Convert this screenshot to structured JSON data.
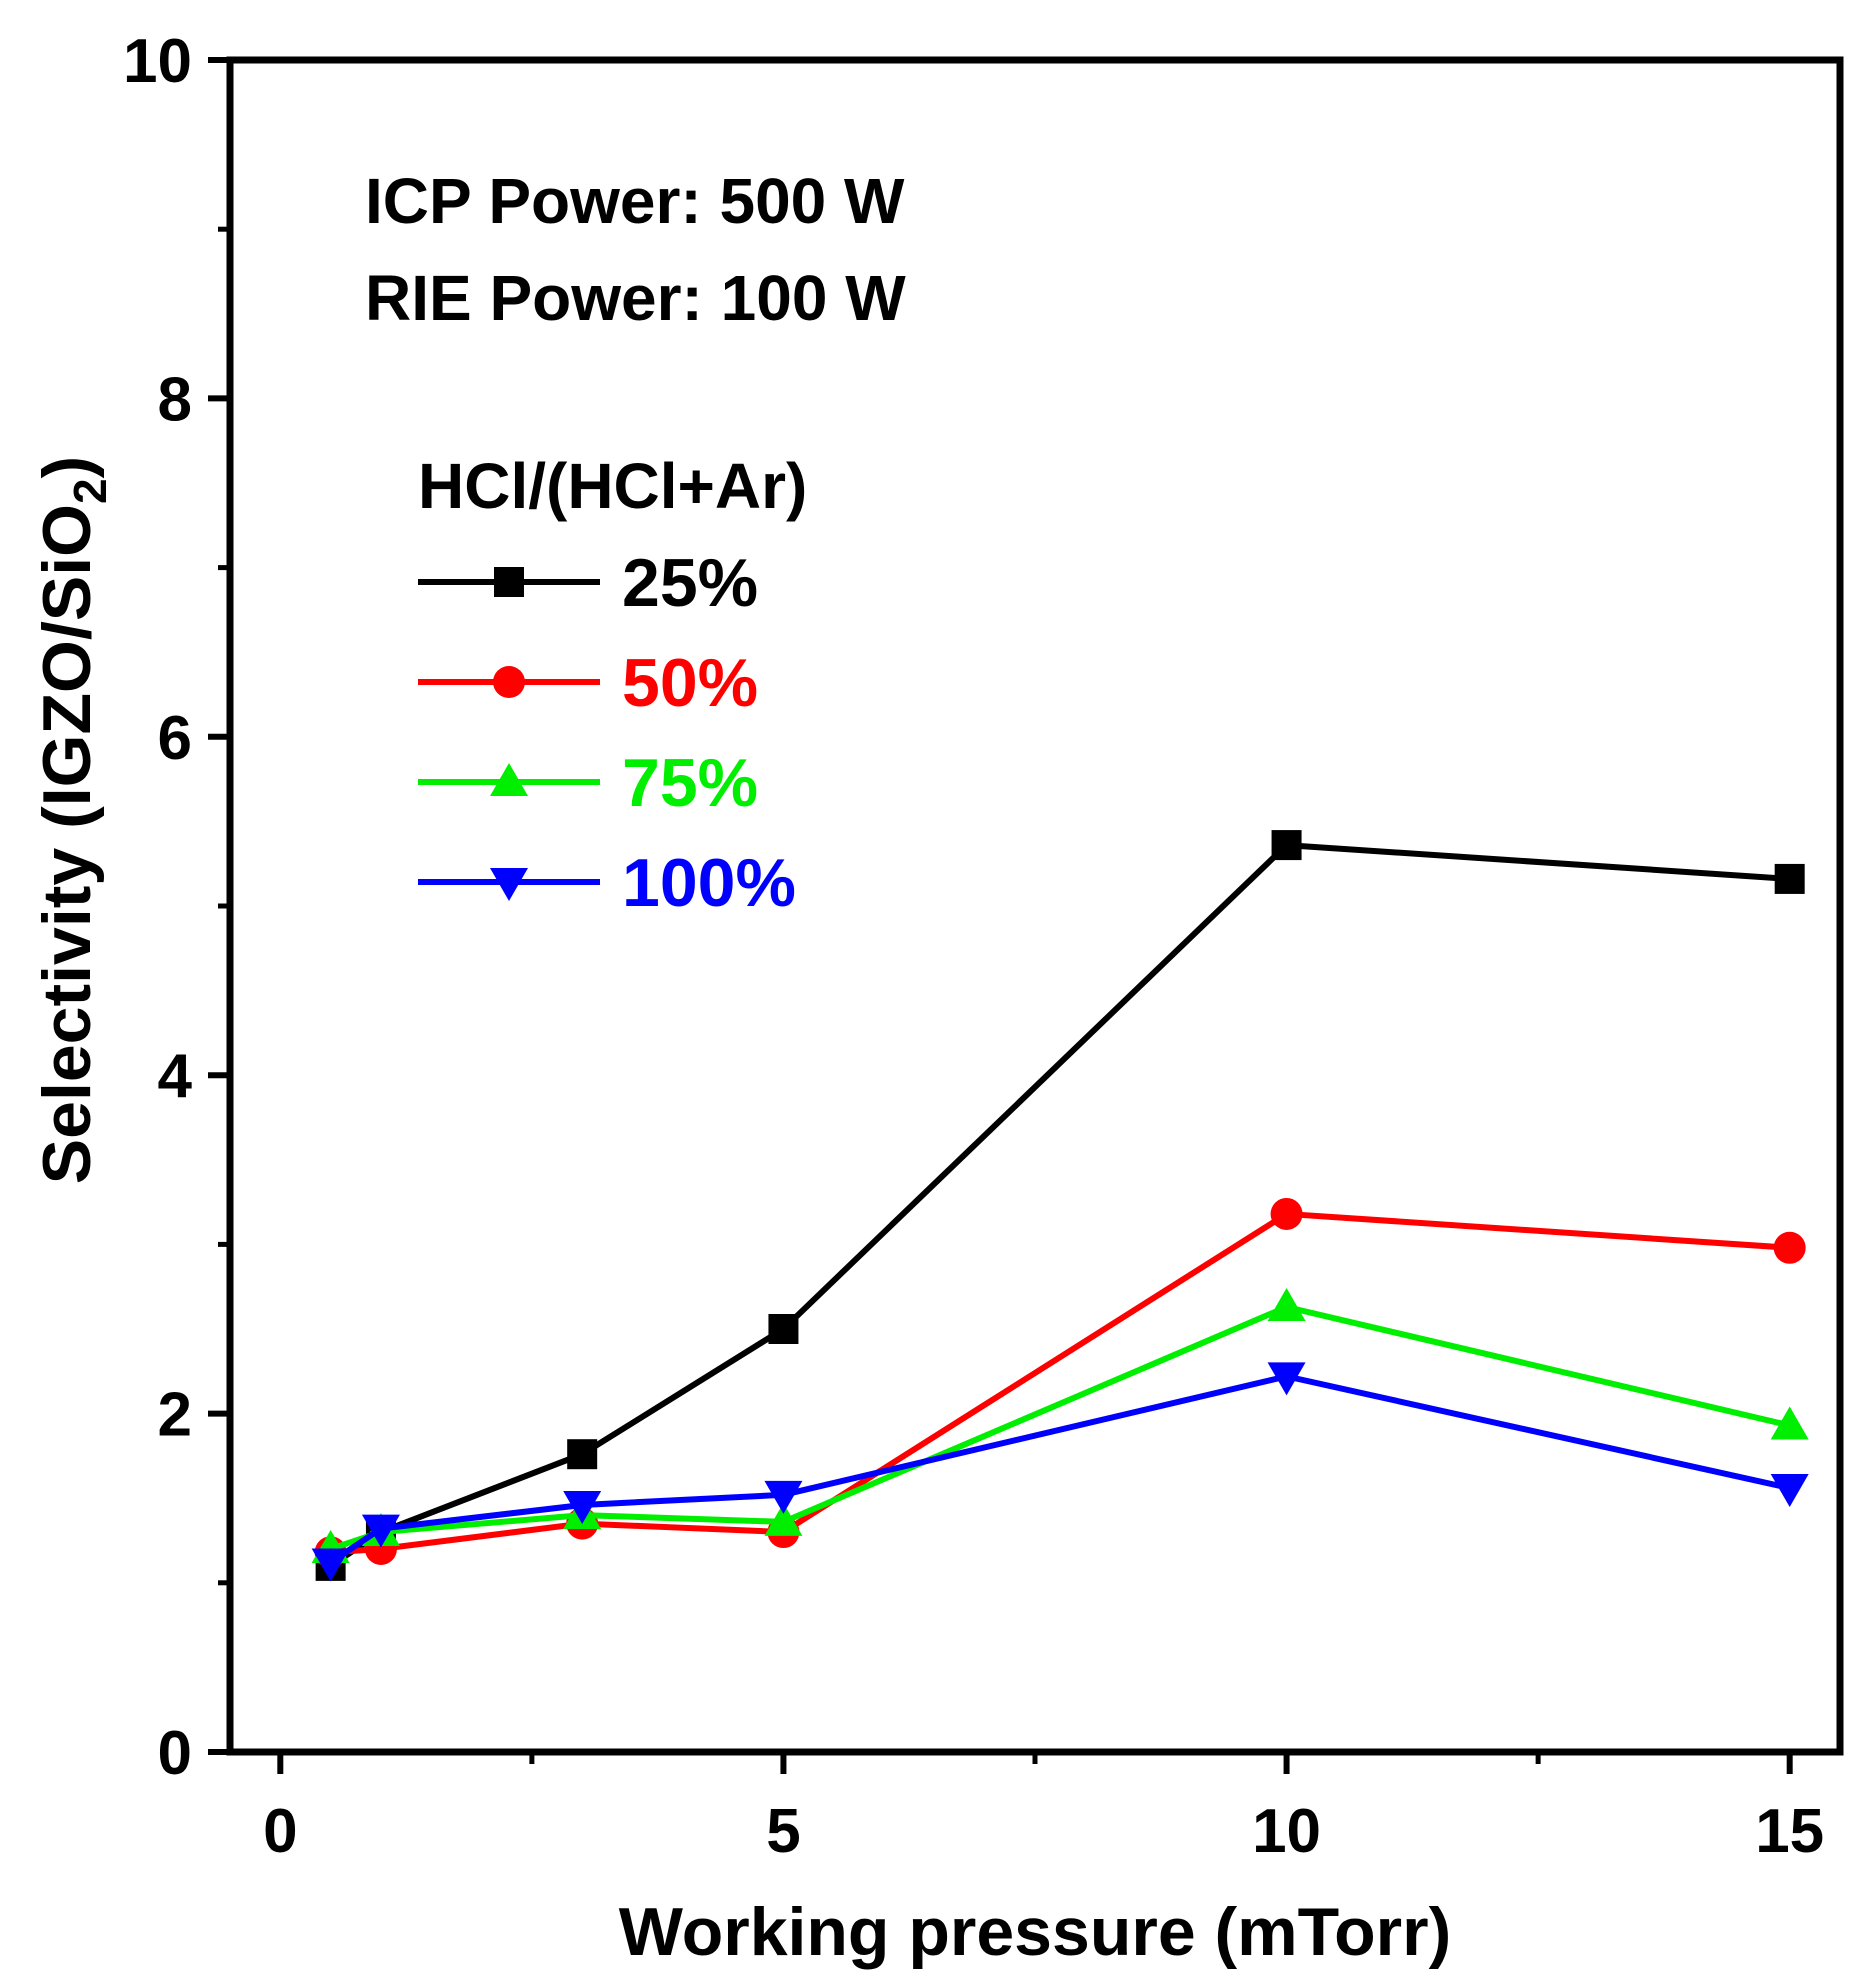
{
  "chart_data": {
    "type": "line",
    "title": "",
    "xlabel": "Working pressure (mTorr)",
    "ylabel_prefix": "Selectivity (IGZO/SiO",
    "ylabel_subscript": "2",
    "ylabel_suffix": ")",
    "xlim": [
      -0.5,
      15.5
    ],
    "ylim": [
      0,
      10
    ],
    "x_major_ticks": [
      0,
      5,
      10,
      15
    ],
    "x_tick_labels": [
      "0",
      "5",
      "10",
      "15"
    ],
    "x_minor_ticks": [
      2.5,
      7.5,
      12.5
    ],
    "y_major_ticks": [
      0,
      2,
      4,
      6,
      8,
      10
    ],
    "y_tick_labels": [
      "0",
      "2",
      "4",
      "6",
      "8",
      "10"
    ],
    "y_minor_ticks": [
      1,
      3,
      5,
      7,
      9
    ],
    "grid": false,
    "annotations": [
      "ICP Power: 500 W",
      "RIE Power: 100 W"
    ],
    "legend_title": "HCl/(HCl+Ar)",
    "legend_position": "upper-left",
    "x": [
      0.5,
      1,
      3,
      5,
      10,
      15
    ],
    "series": [
      {
        "name": "25%",
        "color": "#000000",
        "marker": "square",
        "values": [
          1.1,
          1.3,
          1.76,
          2.5,
          5.36,
          5.16
        ]
      },
      {
        "name": "50%",
        "color": "#ff0000",
        "marker": "circle",
        "values": [
          1.18,
          1.2,
          1.35,
          1.3,
          3.18,
          2.98
        ]
      },
      {
        "name": "75%",
        "color": "#00ee00",
        "marker": "triangle-up",
        "values": [
          1.2,
          1.3,
          1.4,
          1.36,
          2.63,
          1.93
        ]
      },
      {
        "name": "100%",
        "color": "#0000ff",
        "marker": "triangle-down",
        "values": [
          1.12,
          1.32,
          1.46,
          1.52,
          2.22,
          1.56
        ]
      }
    ]
  }
}
